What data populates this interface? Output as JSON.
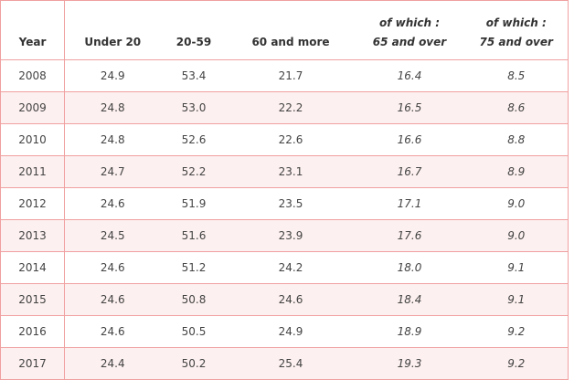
{
  "table": {
    "header": [
      "Year",
      "Under 20",
      "20-59",
      "60 and more"
    ],
    "sub_header": [
      {
        "note": "of which :",
        "label": "65 and over"
      },
      {
        "note": "of which :",
        "label": "75 and over"
      }
    ],
    "rows": [
      [
        "2008",
        "24.9",
        "53.4",
        "21.7",
        "16.4",
        "8.5"
      ],
      [
        "2009",
        "24.8",
        "53.0",
        "22.2",
        "16.5",
        "8.6"
      ],
      [
        "2010",
        "24.8",
        "52.6",
        "22.6",
        "16.6",
        "8.8"
      ],
      [
        "2011",
        "24.7",
        "52.2",
        "23.1",
        "16.7",
        "8.9"
      ],
      [
        "2012",
        "24.6",
        "51.9",
        "23.5",
        "17.1",
        "9.0"
      ],
      [
        "2013",
        "24.5",
        "51.6",
        "23.9",
        "17.6",
        "9.0"
      ],
      [
        "2014",
        "24.6",
        "51.2",
        "24.2",
        "18.0",
        "9.1"
      ],
      [
        "2015",
        "24.6",
        "50.8",
        "24.6",
        "18.4",
        "9.1"
      ],
      [
        "2016",
        "24.6",
        "50.5",
        "24.9",
        "18.9",
        "9.2"
      ],
      [
        "2017",
        "24.4",
        "50.2",
        "25.4",
        "19.3",
        "9.2"
      ]
    ]
  }
}
